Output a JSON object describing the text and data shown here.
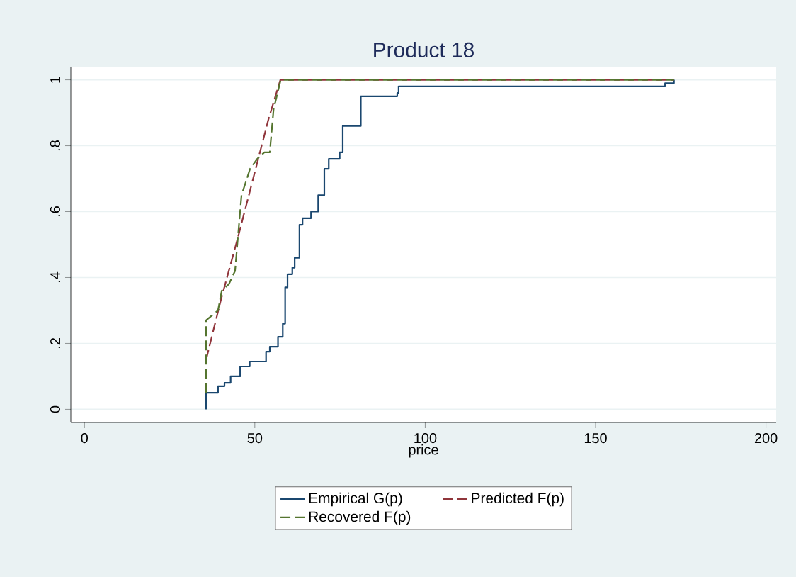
{
  "chart_data": {
    "type": "line",
    "title": "Product 18",
    "xlabel": "price",
    "xlim": [
      -4,
      203
    ],
    "ylim": [
      -0.04,
      1.04
    ],
    "xticks": [
      0,
      50,
      100,
      150,
      200
    ],
    "yticks": [
      0,
      {
        "value": 0.2,
        "label": ".2"
      },
      {
        "value": 0.4,
        "label": ".4"
      },
      {
        "value": 0.6,
        "label": ".6"
      },
      {
        "value": 0.8,
        "label": ".8"
      },
      1
    ],
    "grid": "y",
    "legend": "bottom",
    "series": [
      {
        "name": "Empirical G(p)",
        "type": "step",
        "line_style": "solid",
        "color": "#1a476f",
        "x": [
          35.7,
          35.7,
          39.2,
          41.1,
          42.9,
          45.7,
          48.5,
          53.3,
          54.4,
          56.8,
          58.2,
          58.9,
          59.6,
          61.0,
          61.7,
          63.1,
          64.0,
          66.5,
          68.6,
          70.4,
          71.7,
          74.9,
          75.8,
          81.1,
          91.8,
          92.2,
          170.4,
          173
        ],
        "values": [
          0,
          0.05,
          0.07,
          0.08,
          0.1,
          0.13,
          0.145,
          0.175,
          0.19,
          0.22,
          0.26,
          0.37,
          0.41,
          0.43,
          0.46,
          0.56,
          0.58,
          0.6,
          0.65,
          0.73,
          0.76,
          0.78,
          0.86,
          0.95,
          0.96,
          0.98,
          0.99,
          1
        ]
      },
      {
        "name": "Predicted F(p)",
        "line_style": "dashed",
        "color": "#90353b",
        "x": [
          35.7,
          40,
          45,
          50,
          54,
          57.5,
          173
        ],
        "values": [
          0.15,
          0.33,
          0.52,
          0.72,
          0.88,
          1,
          1
        ]
      },
      {
        "name": "Recovered F(p)",
        "line_style": "dashed",
        "color": "#55752f",
        "x": [
          35.7,
          35.7,
          39.2,
          40.3,
          42.4,
          44.2,
          46.1,
          48.6,
          50.7,
          52.8,
          54.4,
          55.5,
          57.6,
          173
        ],
        "values": [
          0.05,
          0.27,
          0.3,
          0.36,
          0.38,
          0.42,
          0.65,
          0.73,
          0.76,
          0.78,
          0.78,
          0.91,
          1,
          1
        ]
      }
    ]
  }
}
